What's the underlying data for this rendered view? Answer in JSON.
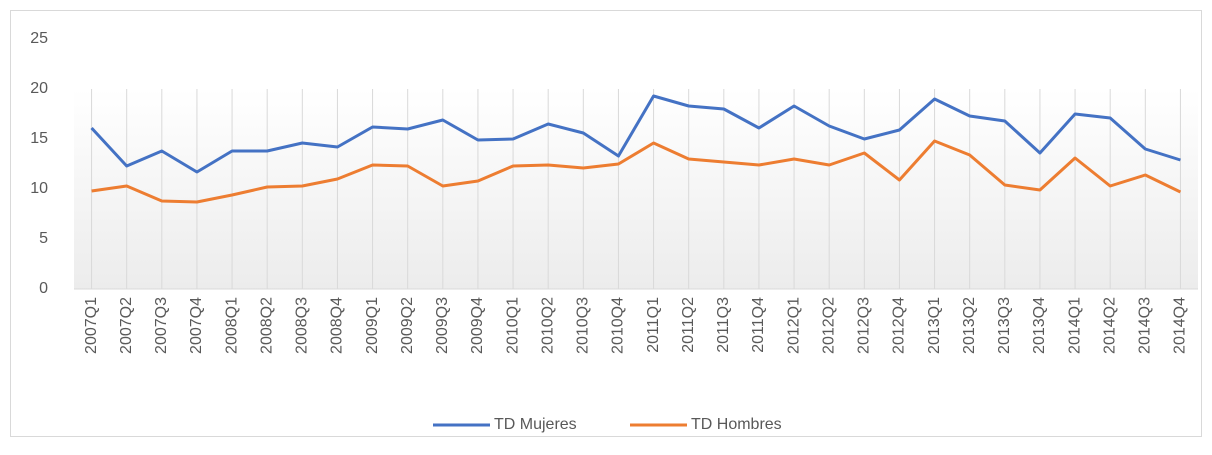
{
  "chart_data": {
    "type": "line",
    "categories": [
      "2007Q1",
      "2007Q2",
      "2007Q3",
      "2007Q4",
      "2008Q1",
      "2008Q2",
      "2008Q3",
      "2008Q4",
      "2009Q1",
      "2009Q2",
      "2009Q3",
      "2009Q4",
      "2010Q1",
      "2010Q2",
      "2010Q3",
      "2010Q4",
      "2011Q1",
      "2011Q2",
      "2011Q3",
      "2011Q4",
      "2012Q1",
      "2012Q2",
      "2012Q3",
      "2012Q4",
      "2013Q1",
      "2013Q2",
      "2013Q3",
      "2013Q4",
      "2014Q1",
      "2014Q2",
      "2014Q3",
      "2014Q4"
    ],
    "series": [
      {
        "name": "TD Mujeres",
        "color": "#4472c4",
        "values": [
          16.1,
          12.3,
          13.8,
          11.7,
          13.8,
          13.8,
          14.6,
          14.2,
          16.2,
          16.0,
          16.9,
          14.9,
          15.0,
          16.5,
          15.6,
          13.3,
          19.3,
          18.3,
          18.0,
          16.1,
          18.3,
          16.3,
          15.0,
          15.9,
          19.0,
          17.3,
          16.8,
          13.6,
          17.5,
          17.1,
          14.0,
          12.9
        ]
      },
      {
        "name": "TD Hombres",
        "color": "#ed7d31",
        "values": [
          9.8,
          10.3,
          8.8,
          8.7,
          9.4,
          10.2,
          10.3,
          11.0,
          12.4,
          12.3,
          10.3,
          10.8,
          12.3,
          12.4,
          12.1,
          12.5,
          14.6,
          13.0,
          12.7,
          12.4,
          13.0,
          12.4,
          13.6,
          10.9,
          14.8,
          13.4,
          10.4,
          9.9,
          13.1,
          10.3,
          11.4,
          9.7
        ]
      }
    ],
    "ylim": [
      0,
      25
    ],
    "yticks": [
      0,
      5,
      10,
      15,
      20,
      25
    ],
    "grid": true,
    "legend": "bottom"
  }
}
